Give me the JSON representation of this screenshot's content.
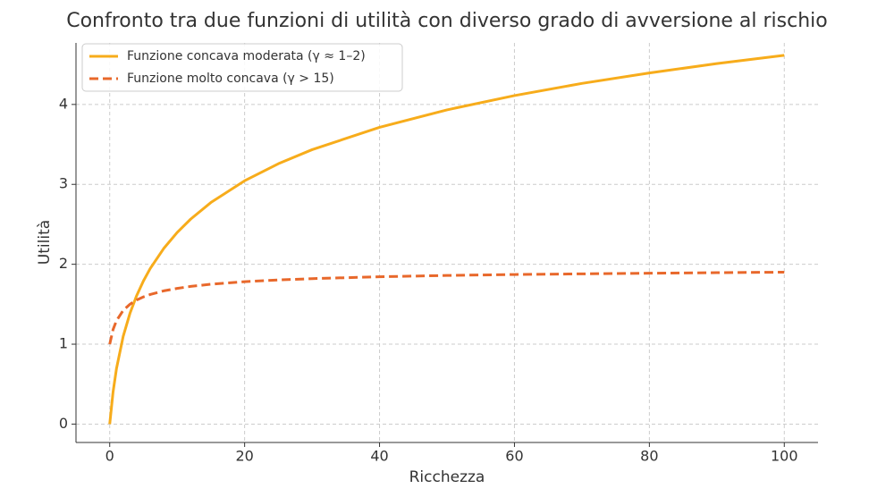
{
  "chart_data": {
    "type": "line",
    "title": "Confronto tra due funzioni di utilità con diverso grado di avversione al rischio",
    "x_label": "Ricchezza",
    "y_label": "Utilità",
    "x": [
      0,
      0.5,
      1,
      2,
      3,
      4,
      5,
      6,
      8,
      10,
      12,
      15,
      20,
      25,
      30,
      40,
      50,
      60,
      70,
      80,
      90,
      100
    ],
    "series": [
      {
        "name": "Funzione concava moderata (γ ≈ 1–2)",
        "color": "#f7ac1b",
        "linestyle": "solid",
        "values": [
          0,
          0.405,
          0.693,
          1.099,
          1.386,
          1.609,
          1.792,
          1.946,
          2.197,
          2.398,
          2.565,
          2.773,
          3.045,
          3.258,
          3.434,
          3.714,
          3.932,
          4.111,
          4.263,
          4.394,
          4.511,
          4.615
        ]
      },
      {
        "name": "Funzione molto concava (γ > 15)",
        "color": "#e8682b",
        "linestyle": "dashed",
        "values": [
          1,
          1.184,
          1.293,
          1.423,
          1.5,
          1.553,
          1.592,
          1.622,
          1.667,
          1.698,
          1.723,
          1.75,
          1.782,
          1.804,
          1.82,
          1.844,
          1.86,
          1.872,
          1.88,
          1.888,
          1.895,
          1.901
        ]
      }
    ],
    "xlim": [
      -5,
      105
    ],
    "xticks": [
      0,
      20,
      40,
      60,
      80,
      100
    ],
    "ylim": [
      -0.23,
      4.77
    ],
    "yticks": [
      0,
      1,
      2,
      3,
      4
    ],
    "grid": true,
    "legend": "upper left"
  }
}
